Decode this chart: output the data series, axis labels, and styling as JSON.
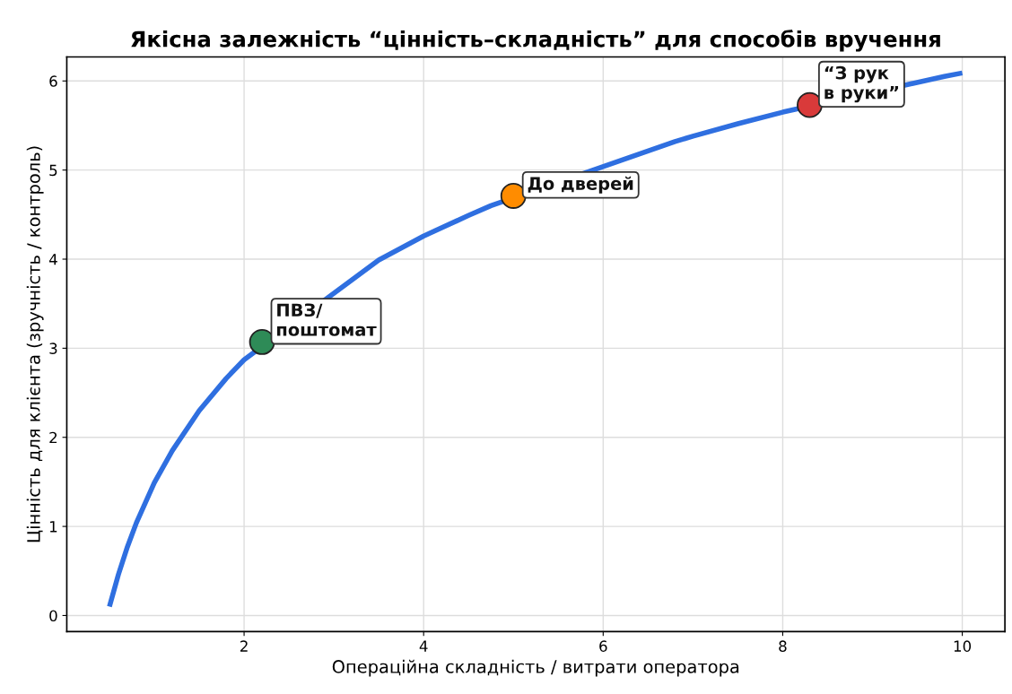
{
  "chart_data": {
    "type": "line",
    "title": "Якісна залежність “цінність–складність” для способів вручення",
    "xlabel": "Операційна складність / витрати оператора",
    "ylabel": "Цінність для клієнта (зручність / контроль)",
    "xlim": [
      0.025,
      10.475
    ],
    "ylim": [
      -0.18,
      6.27
    ],
    "xticks": [
      2,
      4,
      6,
      8,
      10
    ],
    "yticks": [
      0,
      1,
      2,
      3,
      4,
      5,
      6
    ],
    "grid": true,
    "series": [
      {
        "type": "line",
        "color": "#2f6fe0",
        "x": [
          0.5,
          0.6,
          0.7,
          0.8,
          1.0,
          1.2,
          1.5,
          1.8,
          2.0,
          3.5,
          4,
          4.5,
          4.75,
          6.8,
          7,
          7.5,
          8,
          9.8,
          10
        ],
        "values": [
          0.1,
          0.46,
          0.77,
          1.04,
          1.49,
          1.85,
          2.3,
          2.66,
          2.87,
          3.99,
          4.26,
          4.49,
          4.6,
          5.32,
          5.38,
          5.52,
          5.65,
          6.05,
          6.09
        ]
      },
      {
        "type": "scatter",
        "color": "#2e8b57",
        "x": [
          2.2
        ],
        "values": [
          3.07
        ]
      },
      {
        "type": "scatter",
        "color": "#ff8c00",
        "x": [
          5.0
        ],
        "values": [
          4.71
        ]
      },
      {
        "type": "scatter",
        "color": "#d93a3a",
        "x": [
          8.3
        ],
        "values": [
          5.73
        ]
      }
    ],
    "annotations": [
      {
        "text": "ПВЗ/\nпоштомат",
        "x": 2.2,
        "y": 3.07
      },
      {
        "text": "До дверей",
        "x": 5.0,
        "y": 4.71
      },
      {
        "text": "“З рук\nв руки”",
        "x": 8.3,
        "y": 5.73
      }
    ]
  }
}
